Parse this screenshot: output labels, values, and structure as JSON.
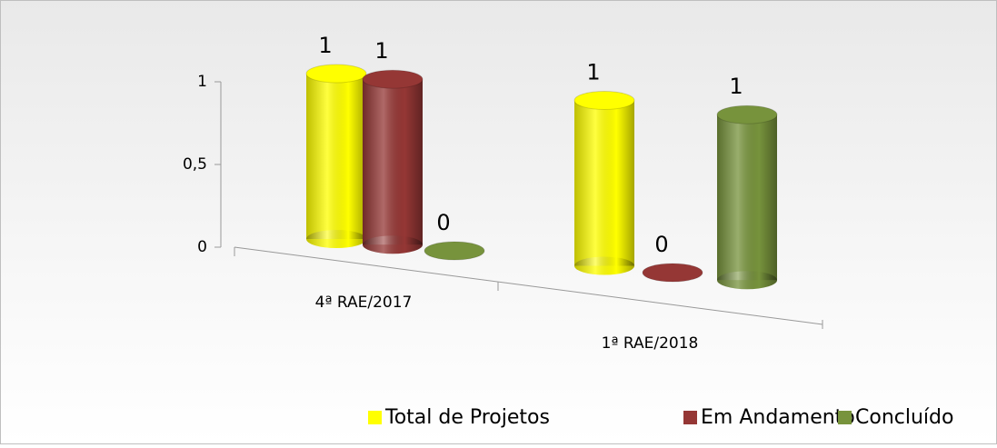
{
  "chart_data": {
    "type": "bar3d",
    "categories": [
      "4ª RAE/2017",
      "1ª RAE/2018"
    ],
    "series": [
      {
        "name": "Total de Projetos",
        "color": "#ffff00",
        "values": [
          1,
          1
        ]
      },
      {
        "name": "Em Andamento",
        "color": "#953735",
        "values": [
          1,
          0
        ]
      },
      {
        "name": "Concluído",
        "color": "#77933c",
        "values": [
          0,
          1
        ]
      }
    ],
    "ylim": [
      0,
      1
    ],
    "yticks": [
      0,
      {
        "value": 0.5,
        "label": "0,5"
      },
      1
    ],
    "legend": "bottom-right"
  }
}
